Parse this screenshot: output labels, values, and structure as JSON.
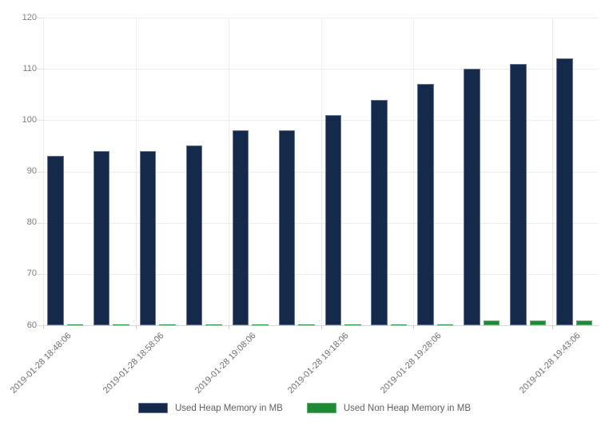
{
  "chart_data": {
    "type": "bar",
    "title": "",
    "xlabel": "",
    "ylabel": "",
    "ylim": [
      60,
      120
    ],
    "y_ticks": [
      60,
      70,
      80,
      90,
      100,
      110,
      120
    ],
    "num_categories": 12,
    "x_tick_labels": [
      "2019-01-28 18:48:06",
      "2019-01-28 18:58:06",
      "2019-01-28 19:08:06",
      "2019-01-28 19:18:06",
      "2019-01-28 19:28:06",
      "2019-01-28 19:43:06"
    ],
    "x_tick_category_indices": [
      0,
      2,
      4,
      6,
      8,
      11
    ],
    "grid": true,
    "legend_position": "bottom",
    "series": [
      {
        "name": "Used Heap Memory in MB",
        "color": "#15294b",
        "values": [
          93,
          94,
          94,
          95,
          98,
          98,
          101,
          104,
          107,
          110,
          111,
          112
        ]
      },
      {
        "name": "Used Non Heap Memory in MB",
        "color": "#1e8a38",
        "values": [
          60,
          60,
          60,
          60,
          60,
          60,
          60,
          60,
          60,
          61,
          61,
          61
        ]
      }
    ]
  }
}
